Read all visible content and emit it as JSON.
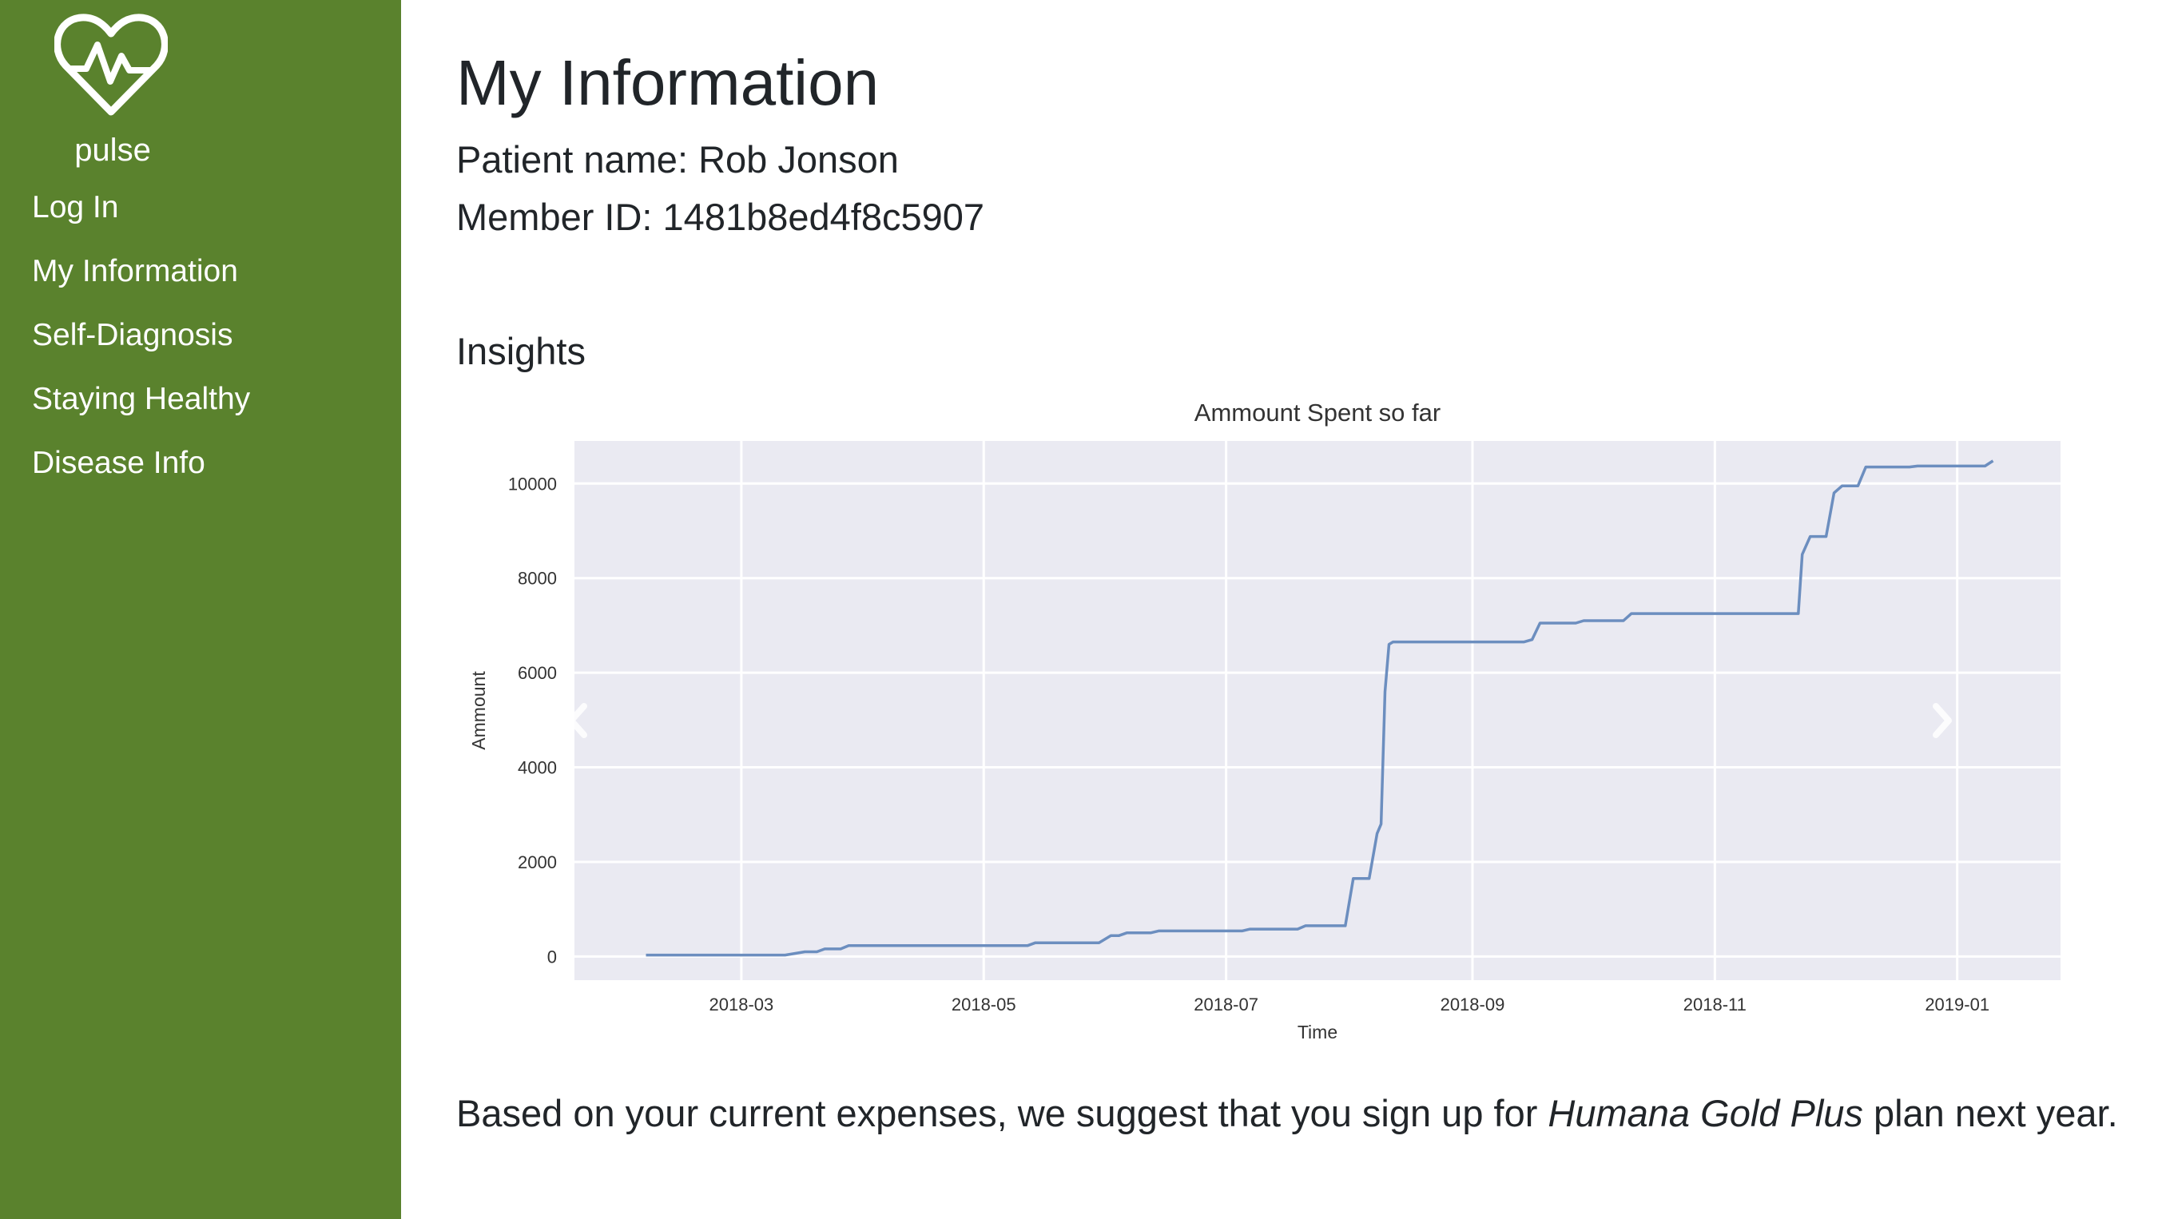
{
  "brand": {
    "name": "pulse",
    "icon": "heart-pulse-icon"
  },
  "sidebar": {
    "items": [
      {
        "label": "Log In"
      },
      {
        "label": "My Information"
      },
      {
        "label": "Self-Diagnosis"
      },
      {
        "label": "Staying Healthy"
      },
      {
        "label": "Disease Info"
      }
    ]
  },
  "page": {
    "title": "My Information",
    "patient_line": "Patient name: Rob Jonson",
    "member_line": "Member ID: 1481b8ed4f8c5907",
    "insights_heading": "Insights",
    "suggestion": {
      "prefix": "Based on your current expenses, we suggest that you sign up for ",
      "plan": "Humana Gold Plus",
      "suffix": " plan next year."
    }
  },
  "colors": {
    "sidebar_bg": "#5a822d",
    "plot_bg": "#eaeaf2",
    "line": "#6c8ebf",
    "text": "#212529"
  },
  "carousel": {
    "prev_icon": "chevron-left-icon",
    "next_icon": "chevron-right-icon"
  },
  "chart_data": {
    "type": "line",
    "title": "Ammount Spent so far",
    "xlabel": "Time",
    "ylabel": "Ammount",
    "x_tick_labels": [
      "2018-03",
      "2018-05",
      "2018-07",
      "2018-09",
      "2018-11",
      "2019-01"
    ],
    "x_ticks": [
      "2018-03-01",
      "2018-05-01",
      "2018-07-01",
      "2018-09-01",
      "2018-11-01",
      "2019-01-01"
    ],
    "xlim": [
      "2018-01-18",
      "2019-01-27"
    ],
    "y_ticks": [
      0,
      2000,
      4000,
      6000,
      8000,
      10000
    ],
    "ylim": [
      -500,
      10900
    ],
    "grid": true,
    "series": [
      {
        "points": [
          [
            "2018-02-05",
            30
          ],
          [
            "2018-03-12",
            30
          ],
          [
            "2018-03-17",
            100
          ],
          [
            "2018-03-20",
            100
          ],
          [
            "2018-03-22",
            160
          ],
          [
            "2018-03-26",
            160
          ],
          [
            "2018-03-28",
            230
          ],
          [
            "2018-05-12",
            230
          ],
          [
            "2018-05-14",
            290
          ],
          [
            "2018-05-30",
            290
          ],
          [
            "2018-06-02",
            440
          ],
          [
            "2018-06-04",
            440
          ],
          [
            "2018-06-06",
            500
          ],
          [
            "2018-06-12",
            500
          ],
          [
            "2018-06-14",
            540
          ],
          [
            "2018-07-05",
            540
          ],
          [
            "2018-07-07",
            580
          ],
          [
            "2018-07-19",
            580
          ],
          [
            "2018-07-21",
            650
          ],
          [
            "2018-07-31",
            650
          ],
          [
            "2018-08-02",
            1650
          ],
          [
            "2018-08-06",
            1650
          ],
          [
            "2018-08-08",
            2600
          ],
          [
            "2018-08-09",
            2800
          ],
          [
            "2018-08-10",
            5600
          ],
          [
            "2018-08-11",
            6600
          ],
          [
            "2018-08-12",
            6650
          ],
          [
            "2018-09-14",
            6650
          ],
          [
            "2018-09-16",
            6700
          ],
          [
            "2018-09-18",
            7050
          ],
          [
            "2018-09-27",
            7050
          ],
          [
            "2018-09-29",
            7100
          ],
          [
            "2018-10-09",
            7100
          ],
          [
            "2018-10-11",
            7250
          ],
          [
            "2018-11-22",
            7250
          ],
          [
            "2018-11-23",
            8500
          ],
          [
            "2018-11-25",
            8880
          ],
          [
            "2018-11-29",
            8880
          ],
          [
            "2018-12-01",
            9800
          ],
          [
            "2018-12-03",
            9950
          ],
          [
            "2018-12-07",
            9950
          ],
          [
            "2018-12-09",
            10350
          ],
          [
            "2018-12-20",
            10350
          ],
          [
            "2018-12-22",
            10370
          ],
          [
            "2019-01-08",
            10370
          ],
          [
            "2019-01-10",
            10480
          ]
        ]
      }
    ]
  }
}
